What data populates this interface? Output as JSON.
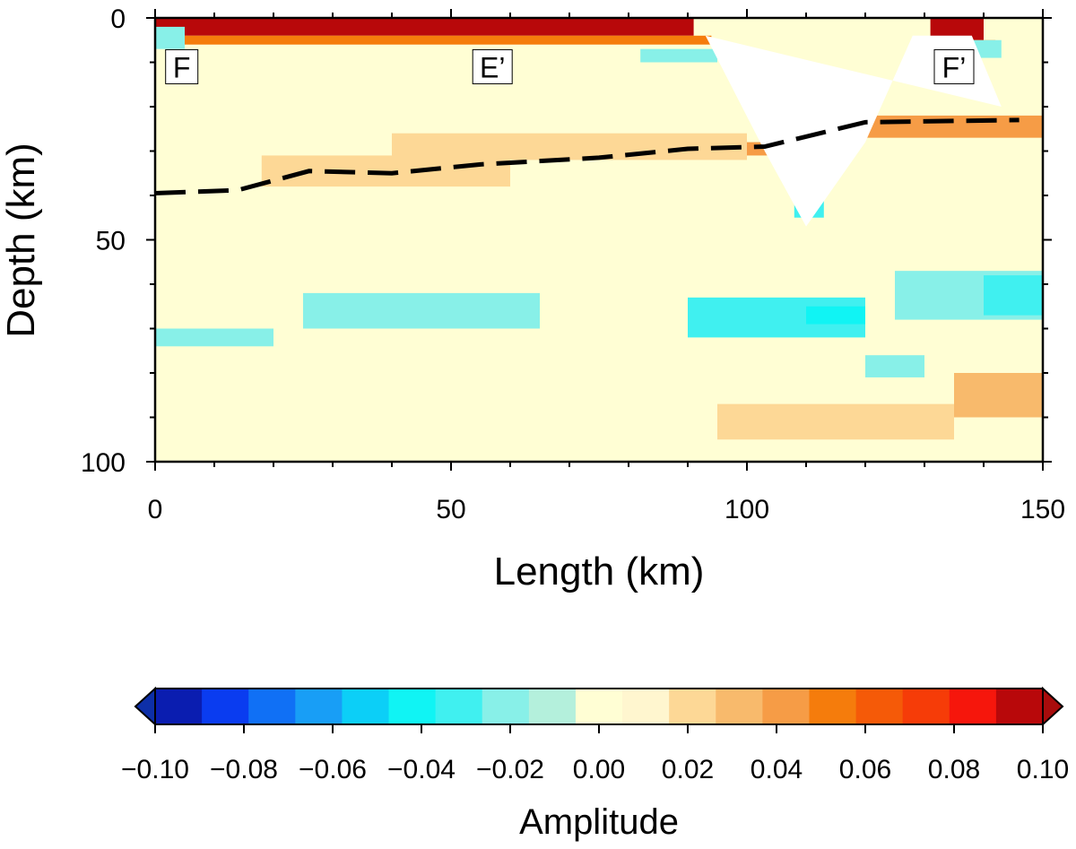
{
  "chart_data": [
    {
      "type": "heatmap",
      "xlabel": "Length (km)",
      "ylabel": "Depth (km)",
      "xlim": [
        0,
        150
      ],
      "ylim": [
        100,
        0
      ],
      "x_ticks": [
        0,
        50,
        100,
        150
      ],
      "y_ticks": [
        0,
        50,
        100
      ],
      "x_tick_labels": [
        "0",
        "50",
        "100",
        "150"
      ],
      "y_tick_labels": [
        "0",
        "50",
        "100"
      ],
      "grid": false,
      "annotations": [
        {
          "text": "F",
          "x": 4.5,
          "y": 11
        },
        {
          "text": "E’",
          "x": 57,
          "y": 11
        },
        {
          "text": "F’",
          "x": 135,
          "y": 11
        }
      ],
      "moho_line": {
        "style": "dashed",
        "color": "#000000",
        "x": [
          0,
          14,
          26,
          40,
          55,
          75,
          90,
          103,
          120,
          146
        ],
        "y": [
          39.5,
          38.8,
          34.5,
          35,
          33,
          31.5,
          29.5,
          29,
          23.5,
          23
        ]
      },
      "no_data_wedge": {
        "x": [
          93,
          103,
          110,
          120,
          128,
          138,
          143
        ],
        "y": [
          4,
          30,
          47,
          28,
          4,
          4,
          20
        ],
        "description_hidden": true
      },
      "anomalies": [
        {
          "x0": 0,
          "x1": 91,
          "y0": 0,
          "y1": 4,
          "value": 0.09
        },
        {
          "x0": 131,
          "x1": 140,
          "y0": 0,
          "y1": 5,
          "value": 0.09
        },
        {
          "x0": 0,
          "x1": 94,
          "y0": 4,
          "y1": 6,
          "value": 0.05
        },
        {
          "x0": 128,
          "x1": 142,
          "y0": 5,
          "y1": 6,
          "value": 0.05
        },
        {
          "x0": 80,
          "x1": 104,
          "y0": 28,
          "y1": 31,
          "value": 0.04
        },
        {
          "x0": 120,
          "x1": 150,
          "y0": 22,
          "y1": 27,
          "value": 0.04
        },
        {
          "x0": 40,
          "x1": 100,
          "y0": 26,
          "y1": 32,
          "value": 0.02
        },
        {
          "x0": 18,
          "x1": 60,
          "y0": 31,
          "y1": 38,
          "value": 0.02
        },
        {
          "x0": 95,
          "x1": 135,
          "y0": 87,
          "y1": 95,
          "value": 0.02
        },
        {
          "x0": 135,
          "x1": 150,
          "y0": 80,
          "y1": 90,
          "value": 0.03
        },
        {
          "x0": 0,
          "x1": 5,
          "y0": 2,
          "y1": 7,
          "value": -0.02
        },
        {
          "x0": 135,
          "x1": 143,
          "y0": 5,
          "y1": 9,
          "value": -0.02
        },
        {
          "x0": 82,
          "x1": 95,
          "y0": 7,
          "y1": 10,
          "value": -0.02
        },
        {
          "x0": 25,
          "x1": 65,
          "y0": 62,
          "y1": 70,
          "value": -0.02
        },
        {
          "x0": 0,
          "x1": 20,
          "y0": 70,
          "y1": 74,
          "value": -0.02
        },
        {
          "x0": 90,
          "x1": 120,
          "y0": 63,
          "y1": 72,
          "value": -0.03
        },
        {
          "x0": 110,
          "x1": 120,
          "y0": 65,
          "y1": 69,
          "value": -0.04
        },
        {
          "x0": 125,
          "x1": 150,
          "y0": 57,
          "y1": 68,
          "value": -0.02
        },
        {
          "x0": 140,
          "x1": 150,
          "y0": 58,
          "y1": 67,
          "value": -0.03
        },
        {
          "x0": 108,
          "x1": 113,
          "y0": 40,
          "y1": 45,
          "value": -0.03
        },
        {
          "x0": 120,
          "x1": 130,
          "y0": 76,
          "y1": 81,
          "value": -0.02
        }
      ],
      "background_value": 0.005
    },
    {
      "type": "colorbar",
      "label": "Amplitude",
      "range": [
        -0.1,
        0.1
      ],
      "tick_values": [
        -0.1,
        -0.08,
        -0.06,
        -0.04,
        -0.02,
        0.0,
        0.02,
        0.04,
        0.06,
        0.08,
        0.1
      ],
      "tick_labels": [
        "−0.10",
        "−0.08",
        "−0.06",
        "−0.04",
        "−0.02",
        "0.00",
        "0.02",
        "0.04",
        "0.06",
        "0.08",
        "0.10"
      ],
      "triangles": true,
      "under_color": "#0d2fa8",
      "over_color": "#a80c0c",
      "colors": [
        "#0a1db0",
        "#0a3cf0",
        "#1070f5",
        "#189ef6",
        "#0ccff7",
        "#10f4f4",
        "#40f0f0",
        "#88f0e8",
        "#b4f0dc",
        "#fffed4",
        "#fff6cf",
        "#fdd896",
        "#f8ba6c",
        "#f69c46",
        "#f57c0c",
        "#f55a08",
        "#f63c08",
        "#f6160c",
        "#b8080a"
      ]
    }
  ]
}
